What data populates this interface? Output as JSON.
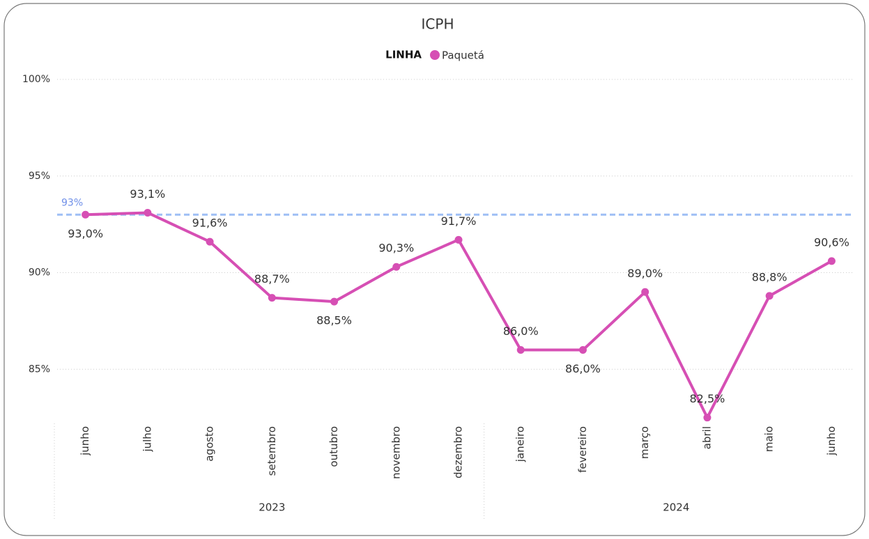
{
  "chart_data": {
    "type": "line",
    "title": "ICPH",
    "legend_title": "LINHA",
    "categories": [
      "junho",
      "julho",
      "agosto",
      "setembro",
      "outubro",
      "novembro",
      "dezembro",
      "janeiro",
      "fevereiro",
      "março",
      "abril",
      "maio",
      "junho"
    ],
    "category_groups": [
      {
        "label": "2023",
        "size": 7
      },
      {
        "label": "2024",
        "size": 6
      }
    ],
    "series": [
      {
        "name": "Paquetá",
        "color": "#d64fb4",
        "values": [
          93.0,
          93.1,
          91.6,
          88.7,
          88.5,
          90.3,
          91.7,
          86.0,
          86.0,
          89.0,
          82.5,
          88.8,
          90.6
        ],
        "value_labels": [
          "93,0%",
          "93,1%",
          "91,6%",
          "88,7%",
          "88,5%",
          "90,3%",
          "91,7%",
          "86,0%",
          "86,0%",
          "89,0%",
          "82,5%",
          "88,8%",
          "90,6%"
        ]
      }
    ],
    "reference_line": {
      "value": 93,
      "label": "93%",
      "color": "#9ebff5"
    },
    "ylim": [
      82.2,
      100
    ],
    "yticks": [
      {
        "value": 85,
        "label": "85%"
      },
      {
        "value": 90,
        "label": "90%"
      },
      {
        "value": 95,
        "label": "95%"
      },
      {
        "value": 100,
        "label": "100%"
      }
    ],
    "grid": true
  }
}
